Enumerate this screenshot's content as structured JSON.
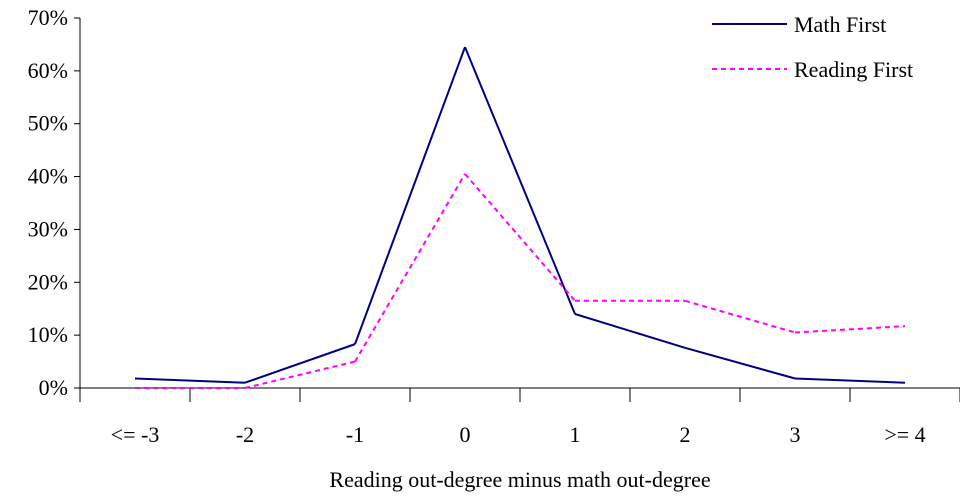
{
  "chart_data": {
    "type": "line",
    "title": "",
    "xlabel": "Reading out-degree minus math out-degree",
    "ylabel": "",
    "categories": [
      "<= -3",
      "-2",
      "-1",
      "0",
      "1",
      "2",
      "3",
      ">= 4"
    ],
    "y_ticks": [
      "0%",
      "10%",
      "20%",
      "30%",
      "40%",
      "50%",
      "60%",
      "70%"
    ],
    "ylim": [
      0,
      70
    ],
    "grid": false,
    "legend_position": "top-right",
    "series": [
      {
        "name": "Math First",
        "values": [
          1.8,
          1.0,
          8.3,
          64.5,
          14.0,
          7.6,
          1.8,
          1.0
        ],
        "color": "#000080",
        "style": "solid"
      },
      {
        "name": "Reading First",
        "values": [
          0.0,
          0.0,
          5.0,
          40.5,
          16.5,
          16.5,
          10.5,
          11.7
        ],
        "color": "#ff00ff",
        "style": "dashed"
      }
    ]
  }
}
